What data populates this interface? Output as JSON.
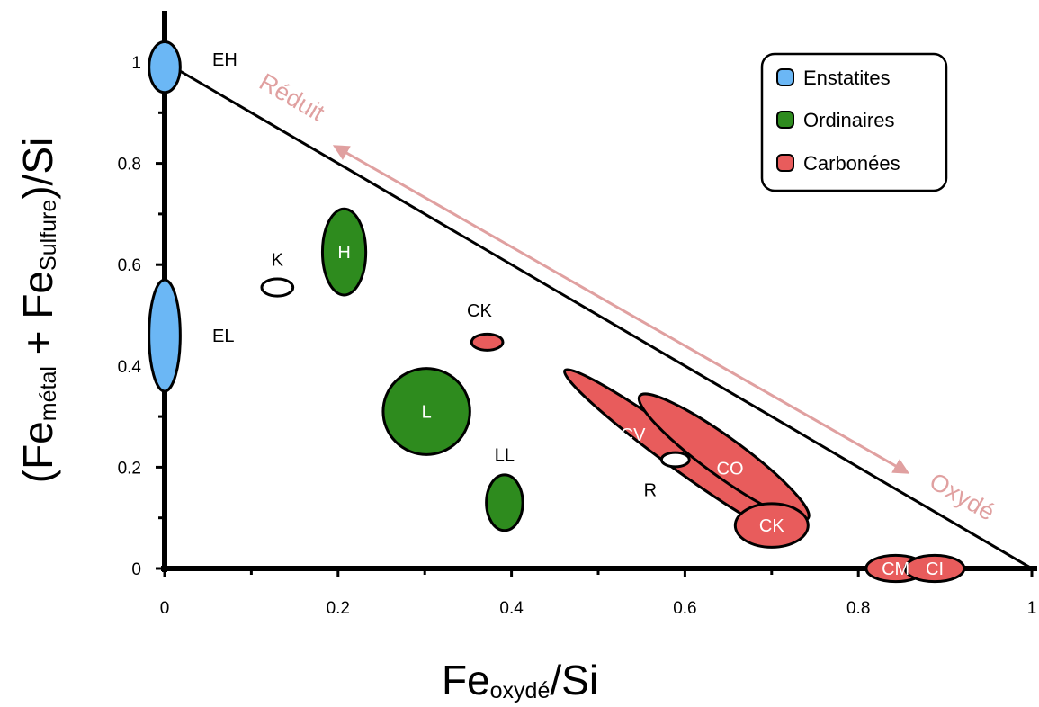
{
  "chart_data": {
    "type": "scatter",
    "title": "",
    "xlabel": {
      "main": "Fe",
      "sub": "oxydé",
      "tail": "/Si"
    },
    "ylabel": {
      "open": "(Fe",
      "sub1": "métal",
      "mid": " + Fe",
      "sub2": "Sulfure",
      "tail": ")/Si"
    },
    "xlim": [
      0,
      1
    ],
    "ylim": [
      0,
      1
    ],
    "x_ticks": [
      "0",
      "0.2",
      "0.4",
      "0.6",
      "0.8",
      "1"
    ],
    "y_ticks": [
      "0",
      "0.2",
      "0.4",
      "0.6",
      "0.8",
      "1"
    ],
    "reference_line": {
      "from": [
        0,
        1
      ],
      "to": [
        1,
        0
      ]
    },
    "groups": [
      {
        "label": "Enstatites",
        "color": "#6bb7f5"
      },
      {
        "label": "Ordinaires",
        "color": "#2e8b1e"
      },
      {
        "label": "Carbonées",
        "color": "#e85c5c"
      }
    ],
    "regions": [
      {
        "label": "EH",
        "group": "Enstatites",
        "x": 0.0,
        "y": 0.99,
        "rx": 0.018,
        "ry": 0.05,
        "angle": 0,
        "label_inside": false,
        "label_x": 0.055,
        "label_y": 1.005
      },
      {
        "label": "EL",
        "group": "Enstatites",
        "x": 0.0,
        "y": 0.46,
        "rx": 0.018,
        "ry": 0.11,
        "angle": 0,
        "label_inside": false,
        "label_x": 0.055,
        "label_y": 0.46
      },
      {
        "label": "K",
        "group": "none",
        "x": 0.13,
        "y": 0.555,
        "rx": 0.018,
        "ry": 0.017,
        "angle": 0,
        "label_inside": false,
        "label_x": 0.13,
        "label_y": 0.61
      },
      {
        "label": "H",
        "group": "Ordinaires",
        "x": 0.207,
        "y": 0.625,
        "rx": 0.025,
        "ry": 0.085,
        "angle": 0,
        "label_inside": true
      },
      {
        "label": "L",
        "group": "Ordinaires",
        "x": 0.302,
        "y": 0.31,
        "rx": 0.05,
        "ry": 0.085,
        "angle": 0,
        "label_inside": true
      },
      {
        "label": "LL",
        "group": "Ordinaires",
        "x": 0.392,
        "y": 0.13,
        "rx": 0.021,
        "ry": 0.055,
        "angle": 0,
        "label_inside": false,
        "label_x": 0.392,
        "label_y": 0.225
      },
      {
        "label": "CK",
        "group": "Carbonées",
        "x": 0.372,
        "y": 0.447,
        "rx": 0.018,
        "ry": 0.016,
        "angle": 0,
        "label_inside": false,
        "label_x": 0.363,
        "label_y": 0.51
      },
      {
        "label": "CV",
        "group": "Carbonées",
        "x": 0.595,
        "y": 0.225,
        "rx": 0.165,
        "ry": 0.03,
        "angle": 36,
        "label_inside": true,
        "label_x": 0.54,
        "label_y": 0.265
      },
      {
        "label": "CO",
        "group": "Carbonées",
        "x": 0.645,
        "y": 0.22,
        "rx": 0.12,
        "ry": 0.038,
        "angle": 36,
        "label_inside": true,
        "label_x": 0.652,
        "label_y": 0.198
      },
      {
        "label": "R",
        "group": "none",
        "x": 0.589,
        "y": 0.215,
        "rx": 0.016,
        "ry": 0.014,
        "angle": 0,
        "label_inside": false,
        "label_x": 0.56,
        "label_y": 0.155
      },
      {
        "label": "CK",
        "group": "Carbonées",
        "x": 0.7,
        "y": 0.085,
        "rx": 0.042,
        "ry": 0.043,
        "angle": 0,
        "label_inside": true
      },
      {
        "label": "CM",
        "group": "Carbonées",
        "x": 0.843,
        "y": 0.0,
        "rx": 0.034,
        "ry": 0.026,
        "angle": 0,
        "label_inside": true
      },
      {
        "label": "CI",
        "group": "Carbonées",
        "x": 0.888,
        "y": 0.0,
        "rx": 0.034,
        "ry": 0.026,
        "angle": 0,
        "label_inside": true
      }
    ],
    "annotations": [
      {
        "text": "Réduit",
        "color": "#e0a0a0"
      },
      {
        "text": "Oxydé",
        "color": "#e0a0a0"
      }
    ],
    "legend_placement": "top-right",
    "grid": false
  }
}
